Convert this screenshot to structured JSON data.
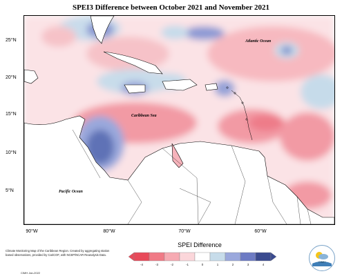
{
  "title": "SPEI3 Difference between October 2021 and November 2021",
  "ocean_labels": {
    "atlantic": "Atlantic Ocean",
    "caribbean": "Caribbean Sea",
    "pacific": "Pacific Ocean"
  },
  "lat_labels": [
    "25°N",
    "20°N",
    "15°N",
    "10°N",
    "5°N"
  ],
  "lon_labels": [
    "90°W",
    "80°W",
    "70°W",
    "60°W"
  ],
  "legend": {
    "title": "SPEI Difference",
    "ticks": [
      "-4",
      "-3",
      "-2",
      "-1",
      "0",
      "1",
      "2",
      "3",
      "4"
    ],
    "colors": [
      "#e84a5a",
      "#f07a86",
      "#f6aab2",
      "#fbd6da",
      "#ffffff",
      "#c7dcea",
      "#9aa8dc",
      "#6d7bc4",
      "#3a4a8f"
    ]
  },
  "credit": "Climate Monitoring Map of the Caribbean Region. Created by aggregating station based observations, provided by CariCOF, with NCEP/NCAR Reanalysis Data.",
  "date": "CIMH Jan-2022",
  "logo_text": "CIMH"
}
